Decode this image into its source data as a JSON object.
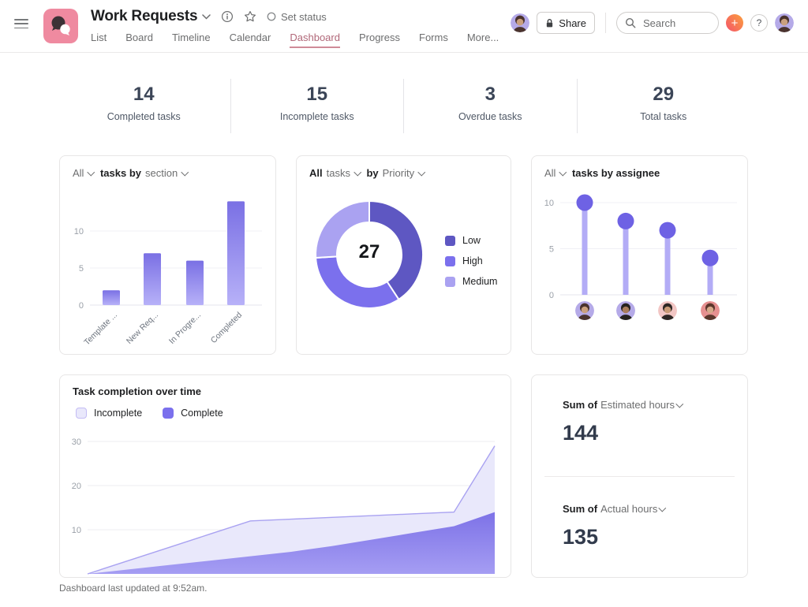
{
  "header": {
    "title": "Work Requests",
    "set_status_label": "Set status",
    "share_label": "Share",
    "search_placeholder": "Search",
    "omni_label": "+",
    "help_label": "?",
    "tabs": [
      {
        "label": "List",
        "active": false
      },
      {
        "label": "Board",
        "active": false
      },
      {
        "label": "Timeline",
        "active": false
      },
      {
        "label": "Calendar",
        "active": false
      },
      {
        "label": "Dashboard",
        "active": true
      },
      {
        "label": "Progress",
        "active": false
      },
      {
        "label": "Forms",
        "active": false
      },
      {
        "label": "More...",
        "active": false
      }
    ],
    "avatar": {
      "bg": "#b5aae8",
      "hair": "#4a332e",
      "skin": "#caa07e"
    }
  },
  "stats": [
    {
      "value": "14",
      "label": "Completed tasks"
    },
    {
      "value": "15",
      "label": "Incomplete tasks"
    },
    {
      "value": "3",
      "label": "Overdue tasks"
    },
    {
      "value": "29",
      "label": "Total tasks"
    }
  ],
  "chart_data": [
    {
      "id": "tasks-by-section",
      "type": "bar",
      "header_segments": [
        {
          "text": "All",
          "muted": true,
          "chevron": true
        },
        {
          "text": "tasks by",
          "muted": false,
          "chevron": false
        },
        {
          "text": "section",
          "muted": true,
          "chevron": true
        }
      ],
      "categories": [
        "Template ...",
        "New Req...",
        "In Progre...",
        "Completed"
      ],
      "values": [
        2,
        7,
        6,
        14
      ],
      "yticks": [
        0,
        5,
        10
      ],
      "ylim": [
        0,
        15
      ],
      "grid": true,
      "bar_gradient": [
        "#7a70e4",
        "#b7b1f8"
      ]
    },
    {
      "id": "tasks-by-priority",
      "type": "donut",
      "header_segments": [
        {
          "text": "All",
          "muted": false,
          "chevron": false
        },
        {
          "text": "tasks",
          "muted": true,
          "chevron": true
        },
        {
          "text": "by",
          "muted": false,
          "chevron": false
        },
        {
          "text": "Priority",
          "muted": true,
          "chevron": true
        }
      ],
      "total_label": "27",
      "legend_position": "right",
      "slices": [
        {
          "label": "Low",
          "value": 11,
          "color": "#5e57c2"
        },
        {
          "label": "High",
          "value": 9,
          "color": "#7b70ed"
        },
        {
          "label": "Medium",
          "value": 7,
          "color": "#aaa2f1"
        }
      ]
    },
    {
      "id": "tasks-by-assignee",
      "type": "lollipop",
      "header_segments": [
        {
          "text": "All",
          "muted": true,
          "chevron": true
        },
        {
          "text": "tasks by assignee",
          "muted": false,
          "chevron": false
        }
      ],
      "values": [
        10,
        8,
        7,
        4
      ],
      "yticks": [
        0,
        5,
        10
      ],
      "ylim": [
        0,
        11
      ],
      "grid": true,
      "stem_color": "#b3acf6",
      "dot_color": "#6e62e4",
      "avatars": [
        {
          "name": "assignee-avatar-1",
          "bg": "#b5aae8",
          "hair": "#4a332e",
          "skin": "#caa07e"
        },
        {
          "name": "assignee-avatar-2",
          "bg": "#b5aae8",
          "hair": "#26221f",
          "skin": "#a97c5c"
        },
        {
          "name": "assignee-avatar-3",
          "bg": "#f2c6c4",
          "hair": "#2e2724",
          "skin": "#c99a76"
        },
        {
          "name": "assignee-avatar-4",
          "bg": "#e69090",
          "hair": "#5b372c",
          "skin": "#d6a98a"
        }
      ]
    },
    {
      "id": "task-completion-over-time",
      "type": "area",
      "title": "Task completion over time",
      "x": [
        0,
        1,
        2,
        3,
        4,
        5,
        6,
        7,
        8,
        9,
        10
      ],
      "yticks": [
        10,
        20,
        30
      ],
      "ylim": [
        0,
        31
      ],
      "grid": true,
      "legend_position": "top-left",
      "series": [
        {
          "name": "Incomplete",
          "values": [
            0,
            3,
            6,
            9,
            12,
            12.4,
            12.8,
            13.2,
            13.6,
            14,
            29
          ],
          "fill": "#e9e8fb",
          "stroke": "#a9a2f1"
        },
        {
          "name": "Complete",
          "values": [
            0,
            1,
            2,
            3,
            4,
            5,
            6.3,
            7.8,
            9.3,
            10.8,
            14
          ],
          "fill_gradient": [
            "#7d72e7",
            "#a59df3"
          ]
        }
      ],
      "legend": [
        {
          "label": "Incomplete",
          "swatch_fill": "#e9e8fb",
          "swatch_border": "#c3bcf4"
        },
        {
          "label": "Complete",
          "swatch_fill": "#7b70ed",
          "swatch_border": "#7b70ed"
        }
      ]
    }
  ],
  "sums": [
    {
      "prefix": "Sum of",
      "field": "Estimated hours",
      "value": "144"
    },
    {
      "prefix": "Sum of",
      "field": "Actual hours",
      "value": "135"
    }
  ],
  "footer": {
    "text": "Dashboard last updated at 9:52am."
  },
  "colors": {
    "accent_purple_dark": "#5e57c2",
    "accent_purple": "#7b70ed",
    "accent_purple_light": "#aaa2f1",
    "active_tab_text": "#b16879",
    "active_tab_underline": "#cf8b98",
    "logo_pink": "#ef8aa0",
    "text_dark": "#1e1f21",
    "text_muted": "#6d6e6f",
    "stat_number": "#3b4557"
  }
}
